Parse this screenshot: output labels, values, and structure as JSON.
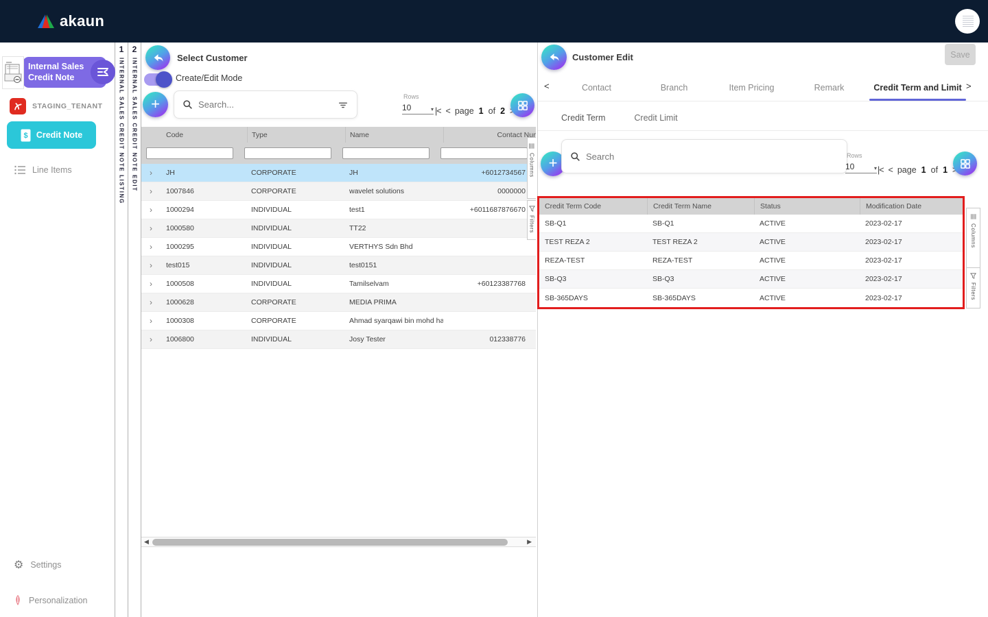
{
  "topbar": {
    "logo_text": "akaun"
  },
  "sidebar": {
    "module_title_line1": "Internal Sales",
    "module_title_line2": "Credit Note",
    "tenant_label": "STAGING_TENANT",
    "nav": [
      {
        "label": "Credit Note",
        "active": true
      },
      {
        "label": "Line Items",
        "active": false
      }
    ],
    "footer": [
      {
        "label": "Settings"
      },
      {
        "label": "Personalization"
      }
    ]
  },
  "strips": [
    {
      "index": "1",
      "label": "INTERNAL SALES CREDIT NOTE LISTING"
    },
    {
      "index": "2",
      "label": "INTERNAL SALES CREDIT NOTE EDIT"
    }
  ],
  "customer_panel": {
    "title": "Select Customer",
    "mode_toggle_label": "Create/Edit Mode",
    "search_placeholder": "Search...",
    "rows_label": "Rows",
    "rows_per_page": "10",
    "pagination": {
      "page_word": "page",
      "page": "1",
      "of_word": "of",
      "total": "2"
    },
    "columns": [
      "Code",
      "Type",
      "Name",
      "Contact Number"
    ],
    "rows": [
      {
        "code": "JH",
        "type": "CORPORATE",
        "name": "JH",
        "contact": "+6012734567",
        "selected": true
      },
      {
        "code": "1007846",
        "type": "CORPORATE",
        "name": "wavelet solutions",
        "contact": "0000000"
      },
      {
        "code": "1000294",
        "type": "INDIVIDUAL",
        "name": "test1",
        "contact": "+6011687876670"
      },
      {
        "code": "1000580",
        "type": "INDIVIDUAL",
        "name": "TT22",
        "contact": ""
      },
      {
        "code": "1000295",
        "type": "INDIVIDUAL",
        "name": "VERTHYS Sdn Bhd",
        "contact": ""
      },
      {
        "code": "test015",
        "type": "INDIVIDUAL",
        "name": "test0151",
        "contact": ""
      },
      {
        "code": "1000508",
        "type": "INDIVIDUAL",
        "name": "Tamilselvam",
        "contact": "+60123387768"
      },
      {
        "code": "1000628",
        "type": "CORPORATE",
        "name": "MEDIA PRIMA",
        "contact": ""
      },
      {
        "code": "1000308",
        "type": "CORPORATE",
        "name": "Ahmad syarqawi bin mohd hass...",
        "contact": ""
      },
      {
        "code": "1006800",
        "type": "INDIVIDUAL",
        "name": "Josy Tester",
        "contact": "012338776"
      }
    ],
    "side_tabs": [
      {
        "label": "Columns"
      },
      {
        "label": "Filters"
      }
    ]
  },
  "edit_panel": {
    "title": "Customer Edit",
    "save_label": "Save",
    "tabs": [
      {
        "label": "Contact",
        "active": false
      },
      {
        "label": "Branch",
        "active": false
      },
      {
        "label": "Item Pricing",
        "active": false
      },
      {
        "label": "Remark",
        "active": false
      },
      {
        "label": "Credit Term and Limit",
        "active": true
      }
    ],
    "sub_tabs": [
      {
        "label": "Credit Term",
        "active": true
      },
      {
        "label": "Credit Limit",
        "active": false
      }
    ],
    "search_placeholder": "Search",
    "rows_label": "Rows",
    "rows_per_page": "10",
    "pagination": {
      "page_word": "page",
      "page": "1",
      "of_word": "of",
      "total": "1"
    },
    "credit_term_table": {
      "columns": [
        "Credit Term Code",
        "Credit Term Name",
        "Status",
        "Modification Date"
      ],
      "rows": [
        {
          "code": "SB-Q1",
          "name": "SB-Q1",
          "status": "ACTIVE",
          "date": "2023-02-17"
        },
        {
          "code": "TEST REZA 2",
          "name": "TEST REZA 2",
          "status": "ACTIVE",
          "date": "2023-02-17"
        },
        {
          "code": "REZA-TEST",
          "name": "REZA-TEST",
          "status": "ACTIVE",
          "date": "2023-02-17"
        },
        {
          "code": "SB-Q3",
          "name": "SB-Q3",
          "status": "ACTIVE",
          "date": "2023-02-17"
        },
        {
          "code": "SB-365DAYS",
          "name": "SB-365DAYS",
          "status": "ACTIVE",
          "date": "2023-02-17"
        }
      ]
    },
    "side_tabs": [
      {
        "label": "Columns"
      },
      {
        "label": "Filters"
      }
    ]
  },
  "icons": {
    "first_page": "|<",
    "prev_page": "<",
    "next_page": ">",
    "last_page": ">|",
    "dropdown_caret": "▾",
    "row_expand": "›",
    "tab_prev": "<",
    "tab_next": ">",
    "scroll_left": "◀",
    "scroll_right": "▶",
    "gear": "⚙"
  },
  "colors": {
    "topbar": "#0c1c31",
    "module_purple": "#7e6ae4",
    "active_teal": "#2bc7d9",
    "highlight_red": "#e21d1d",
    "selected_row": "#bfe4fa",
    "tab_underline": "#6166d8",
    "gradient_start": "#38e1c6",
    "gradient_end": "#9c33ef"
  }
}
